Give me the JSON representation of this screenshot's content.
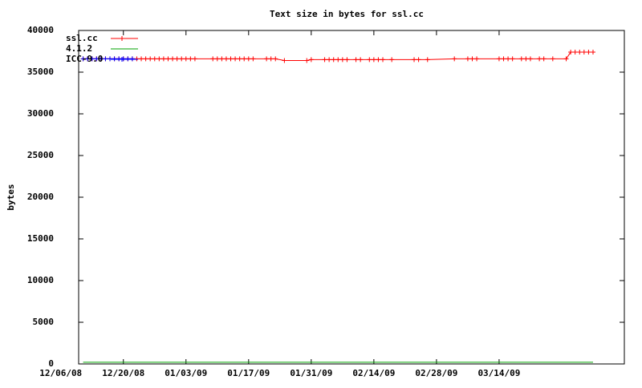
{
  "chart_data": {
    "type": "line",
    "title": "Text size in bytes for ssl.cc",
    "y_label": "bytes",
    "xlim": [
      "2008-12-10",
      "2009-04-11"
    ],
    "ylim": [
      0,
      40000
    ],
    "yticks": [
      0,
      5000,
      10000,
      15000,
      20000,
      25000,
      30000,
      35000,
      40000
    ],
    "xticks": [
      {
        "value": "2008-12-06",
        "label": "12/06/08"
      },
      {
        "value": "2008-12-20",
        "label": "12/20/08"
      },
      {
        "value": "2009-01-03",
        "label": "01/03/09"
      },
      {
        "value": "2009-01-17",
        "label": "01/17/09"
      },
      {
        "value": "2009-01-31",
        "label": "01/31/09"
      },
      {
        "value": "2009-02-14",
        "label": "02/14/09"
      },
      {
        "value": "2009-02-28",
        "label": "02/28/09"
      },
      {
        "value": "2009-03-14",
        "label": "03/14/09"
      }
    ],
    "legend": "top-left",
    "series": [
      {
        "name": "ssl.cc",
        "color": "#ff0000",
        "markers": true,
        "x": [
          "2008-12-11",
          "2008-12-12",
          "2008-12-13",
          "2008-12-14",
          "2008-12-15",
          "2008-12-16",
          "2008-12-17",
          "2008-12-18",
          "2008-12-19",
          "2008-12-20",
          "2008-12-21",
          "2008-12-22",
          "2008-12-23",
          "2008-12-24",
          "2008-12-25",
          "2008-12-26",
          "2008-12-27",
          "2008-12-28",
          "2008-12-29",
          "2008-12-30",
          "2008-12-31",
          "2009-01-01",
          "2009-01-02",
          "2009-01-03",
          "2009-01-04",
          "2009-01-05",
          "2009-01-09",
          "2009-01-10",
          "2009-01-11",
          "2009-01-12",
          "2009-01-13",
          "2009-01-14",
          "2009-01-15",
          "2009-01-16",
          "2009-01-17",
          "2009-01-18",
          "2009-01-21",
          "2009-01-22",
          "2009-01-23",
          "2009-01-25",
          "2009-01-30",
          "2009-01-31",
          "2009-02-03",
          "2009-02-04",
          "2009-02-05",
          "2009-02-06",
          "2009-02-07",
          "2009-02-08",
          "2009-02-10",
          "2009-02-11",
          "2009-02-13",
          "2009-02-14",
          "2009-02-15",
          "2009-02-16",
          "2009-02-18",
          "2009-02-23",
          "2009-02-24",
          "2009-02-26",
          "2009-03-04",
          "2009-03-07",
          "2009-03-08",
          "2009-03-09",
          "2009-03-14",
          "2009-03-15",
          "2009-03-16",
          "2009-03-17",
          "2009-03-19",
          "2009-03-20",
          "2009-03-21",
          "2009-03-23",
          "2009-03-24",
          "2009-03-26",
          "2009-03-29",
          "2009-03-30",
          "2009-03-31",
          "2009-04-01",
          "2009-04-02",
          "2009-04-03",
          "2009-04-04"
        ],
        "values": [
          36600,
          36600,
          36600,
          36600,
          36600,
          36600,
          36600,
          36600,
          36600,
          36600,
          36600,
          36600,
          36600,
          36600,
          36600,
          36600,
          36600,
          36600,
          36600,
          36600,
          36600,
          36600,
          36600,
          36600,
          36600,
          36600,
          36600,
          36600,
          36600,
          36600,
          36600,
          36600,
          36600,
          36600,
          36600,
          36600,
          36600,
          36600,
          36600,
          36400,
          36400,
          36500,
          36500,
          36500,
          36500,
          36500,
          36500,
          36500,
          36500,
          36500,
          36500,
          36500,
          36500,
          36500,
          36500,
          36500,
          36500,
          36500,
          36600,
          36600,
          36600,
          36600,
          36600,
          36600,
          36600,
          36600,
          36600,
          36600,
          36600,
          36600,
          36600,
          36600,
          36600,
          37400,
          37400,
          37400,
          37400,
          37400,
          37400
        ]
      },
      {
        "name": "4.1.2",
        "color": "#00a000",
        "markers": false,
        "x": [
          "2008-12-11",
          "2009-04-04"
        ],
        "values": [
          200,
          200
        ]
      },
      {
        "name": "ICC-9.0",
        "color": "#0000ff",
        "markers": true,
        "x": [
          "2008-12-11",
          "2008-12-12",
          "2008-12-13",
          "2008-12-14",
          "2008-12-15",
          "2008-12-16",
          "2008-12-17",
          "2008-12-18",
          "2008-12-19",
          "2008-12-20",
          "2008-12-21",
          "2008-12-22"
        ],
        "values": [
          36600,
          36600,
          36600,
          36600,
          36600,
          36600,
          36600,
          36600,
          36600,
          36600,
          36600,
          36600
        ]
      }
    ]
  }
}
